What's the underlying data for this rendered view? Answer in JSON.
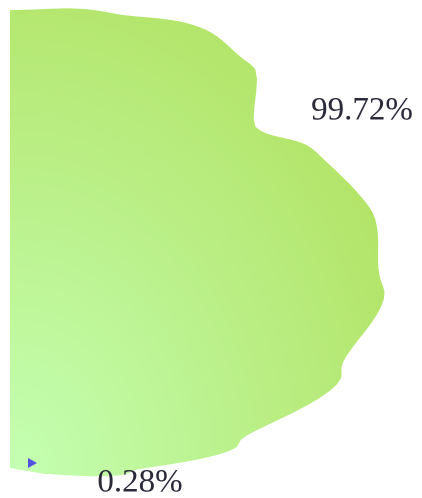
{
  "chart_data": {
    "type": "pie",
    "values": [
      99.72,
      0.28
    ],
    "value_labels": [
      "99.72%",
      "0.28%"
    ],
    "colors": [
      "#b7e873",
      "#5353e0"
    ]
  }
}
